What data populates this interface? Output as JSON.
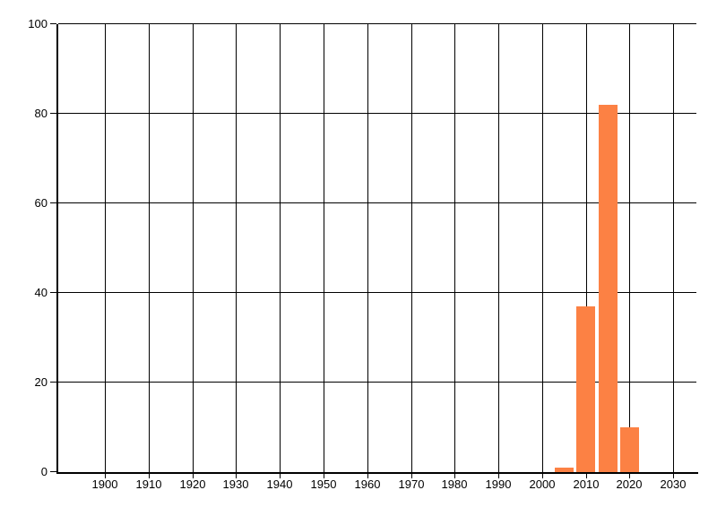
{
  "chart_data": {
    "type": "bar",
    "title": "",
    "xlabel": "",
    "ylabel": "",
    "categories": [
      2005,
      2010,
      2015,
      2020
    ],
    "values": [
      1,
      37,
      82,
      10
    ],
    "x_ticks": [
      1900,
      1910,
      1920,
      1930,
      1940,
      1950,
      1960,
      1970,
      1980,
      1990,
      2000,
      2010,
      2020,
      2030
    ],
    "y_ticks": [
      0,
      20,
      40,
      60,
      80,
      100
    ],
    "xlim": [
      1889.3,
      2035.3
    ],
    "ylim": [
      0,
      100
    ],
    "bar_width_years": 4.3,
    "grid": true,
    "legend": false,
    "colors": {
      "bar": "#FC8144",
      "grid": "#000000",
      "axis": "#000000",
      "text": "#000000",
      "background": "#FFFFFF"
    }
  }
}
